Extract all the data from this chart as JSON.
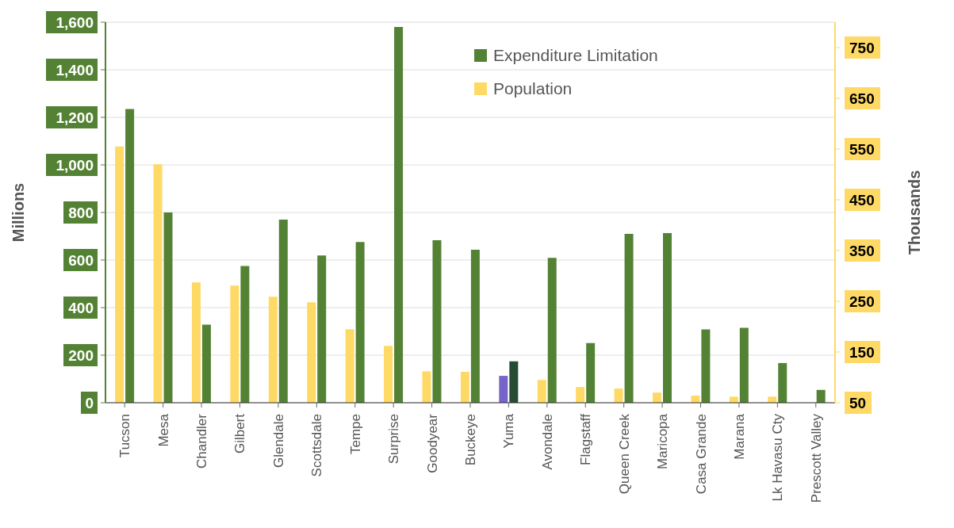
{
  "chart_data": {
    "type": "bar",
    "ylabel": "Millions",
    "y2label": "Thousands",
    "categories": [
      "Tucson",
      "Mesa",
      "Chandler",
      "Gilbert",
      "Glendale",
      "Scottsdale",
      "Tempe",
      "Surprise",
      "Goodyear",
      "Buckeye",
      "Yuma",
      "Avondale",
      "Flagstaff",
      "Queen Creek",
      "Maricopa",
      "Casa Grande",
      "Marana",
      "Lk Havasu Cty",
      "Prescott Valley"
    ],
    "series": [
      {
        "name": "Population",
        "color": "#ffd966",
        "axis": "y2",
        "colors": [
          "#ffd966",
          "#ffd966",
          "#ffd966",
          "#ffd966",
          "#ffd966",
          "#ffd966",
          "#ffd966",
          "#ffd966",
          "#ffd966",
          "#ffd966",
          "#7565c9",
          "#ffd966",
          "#ffd966",
          "#ffd966",
          "#ffd966",
          "#ffd966",
          "#ffd966",
          "#ffd966",
          "#ffd966"
        ],
        "values": [
          555,
          520,
          287,
          281,
          259,
          248,
          195,
          162,
          112,
          111,
          103,
          95,
          81,
          78,
          70,
          64,
          62,
          62,
          null
        ]
      },
      {
        "name": "Expenditure Limitation",
        "color": "#548235",
        "colors": [
          "#548235",
          "#548235",
          "#548235",
          "#548235",
          "#548235",
          "#548235",
          "#548235",
          "#548235",
          "#548235",
          "#548235",
          "#264d33",
          "#548235",
          "#548235",
          "#548235",
          "#548235",
          "#548235",
          "#548235",
          "#548235",
          "#548235"
        ],
        "values": [
          1235,
          800,
          328,
          575,
          770,
          619,
          676,
          1580,
          683,
          643,
          174,
          609,
          251,
          710,
          713,
          308,
          315,
          167,
          54
        ]
      }
    ],
    "ylim": [
      0,
      1600
    ],
    "yticks": [
      0,
      200,
      400,
      600,
      800,
      {
        "value": 1000,
        "label": "1,000"
      },
      {
        "value": 1200,
        "label": "1,200"
      },
      {
        "value": 1400,
        "label": "1,400"
      },
      {
        "value": 1600,
        "label": "1,600"
      }
    ],
    "y2lim": [
      50,
      800
    ],
    "y2ticks": [
      50,
      150,
      250,
      350,
      450,
      550,
      650,
      750
    ],
    "grid": "y",
    "legend": "top right"
  }
}
